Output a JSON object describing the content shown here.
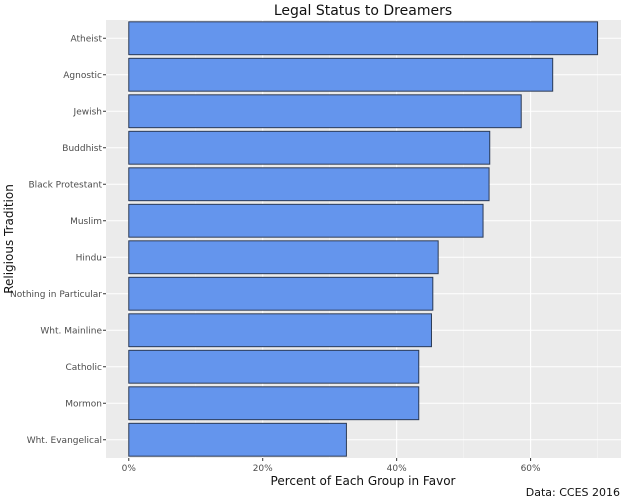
{
  "chart_data": {
    "type": "bar",
    "orientation": "horizontal",
    "title": "Legal Status to Dreamers",
    "xlabel": "Percent of Each Group in Favor",
    "ylabel": "Religious Tradition",
    "caption": "Data: CCES 2016",
    "categories": [
      "Atheist",
      "Agnostic",
      "Jewish",
      "Buddhist",
      "Black Protestant",
      "Muslim",
      "Hindu",
      "Nothing in Particular",
      "Wht. Mainline",
      "Catholic",
      "Mormon",
      "Wht. Evangelical"
    ],
    "values": [
      70.0,
      63.3,
      58.6,
      53.9,
      53.8,
      52.9,
      46.2,
      45.4,
      45.2,
      43.3,
      43.3,
      32.5
    ],
    "xticks": [
      0,
      20,
      40,
      60
    ],
    "xtick_labels": [
      "0%",
      "20%",
      "40%",
      "60%"
    ],
    "xlim": [
      -3.4,
      73.5
    ],
    "grid": true,
    "colors": {
      "bar": "#6495ed",
      "bar_edge": "#2b3a55",
      "panel": "#ebebeb",
      "grid": "#ffffff"
    }
  }
}
